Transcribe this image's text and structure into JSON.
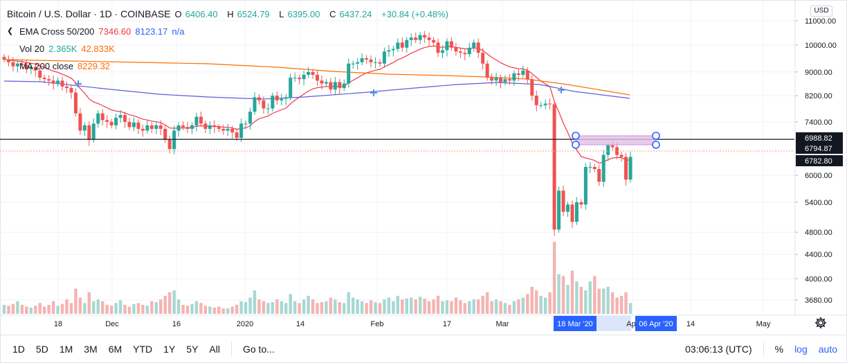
{
  "header": {
    "title": "Bitcoin / U.S. Dollar · 1D · COINBASE",
    "ohlc": [
      {
        "label": "O",
        "value": "6406.40"
      },
      {
        "label": "H",
        "value": "6524.79"
      },
      {
        "label": "L",
        "value": "6395.00"
      },
      {
        "label": "C",
        "value": "6437.24"
      }
    ],
    "change": "+30.84 (+0.48%)"
  },
  "indicators": [
    {
      "name": "EMA Cross 50/200",
      "values": [
        "7346.60",
        "8123.17",
        "n/a"
      ],
      "colors": [
        "#f23645",
        "#2962ff",
        "#2962ff"
      ]
    },
    {
      "name": "Vol 20",
      "values": [
        "2.365K",
        "42.833K"
      ],
      "colors": [
        "#26a69a",
        "#ff6d00"
      ]
    },
    {
      "name": "MA 200 close",
      "values": [
        "8229.32"
      ],
      "colors": [
        "#ff6d00"
      ]
    }
  ],
  "currency_button": "USD",
  "price_scale": {
    "ticks": [
      "11000.00",
      "10000.00",
      "9000.00",
      "8200.00",
      "7400.00",
      "6000.00",
      "5400.00",
      "4800.00",
      "4400.00",
      "4000.00",
      "3680.00"
    ],
    "labels": [
      {
        "text": "6988.82",
        "bg": "#131722",
        "fg": "#ffffff"
      },
      {
        "text": "6794.87",
        "bg": "#131722",
        "fg": "#ffffff"
      },
      {
        "text": "6782.80",
        "bg": "#131722",
        "fg": "#ffffff"
      }
    ]
  },
  "time_scale": {
    "ticks": [
      "18",
      "Dec",
      "16",
      "2020",
      "14",
      "Feb",
      "17",
      "Mar",
      "14",
      "May"
    ],
    "range_labels": [
      "18 Mar '20",
      "06 Apr '20"
    ],
    "partial_label": "Ap"
  },
  "toolbar": {
    "ranges": [
      "1D",
      "5D",
      "1M",
      "3M",
      "6M",
      "YTD",
      "1Y",
      "5Y",
      "All"
    ],
    "goto": "Go to...",
    "clock": "03:06:13 (UTC)",
    "percent": "%",
    "log": "log",
    "auto": "auto"
  },
  "colors": {
    "up": "#26a69a",
    "down": "#ef5350",
    "ema_fast": "#f23645",
    "ema_slow": "#5b5fd6",
    "ma200": "#ff6d00",
    "range_box": "#e1bee7",
    "range_handle": "#2962ff"
  },
  "chart_data": {
    "type": "candlestick",
    "x_start": "2019-10-28",
    "x_end": "2020-03-27",
    "y_scale": "log",
    "ylim": [
      3450,
      11900
    ],
    "horizontal_line": 6910,
    "price_range_box": {
      "from": "2020-03-18",
      "to": "2020-04-06",
      "low": 6794.87,
      "high": 6988.82
    },
    "last_price": 6782.8,
    "close": [
      9450,
      9350,
      9200,
      9300,
      9250,
      9100,
      9180,
      9050,
      8800,
      8750,
      8700,
      8600,
      8700,
      8500,
      8450,
      8300,
      7650,
      7150,
      7300,
      6900,
      7350,
      7650,
      7450,
      7400,
      7300,
      7520,
      7600,
      7400,
      7250,
      7380,
      7200,
      7150,
      7300,
      7200,
      7300,
      7200,
      6900,
      6650,
      7150,
      7300,
      7250,
      7200,
      7300,
      7550,
      7350,
      7200,
      7300,
      7250,
      7200,
      7150,
      7200,
      7100,
      6950,
      7350,
      7350,
      7700,
      8150,
      8050,
      7800,
      7800,
      8200,
      8050,
      8100,
      8150,
      8800,
      8800,
      8750,
      8900,
      9000,
      8900,
      8700,
      8600,
      8650,
      8400,
      8650,
      8450,
      8600,
      9300,
      9300,
      9350,
      9500,
      9450,
      9350,
      9350,
      9300,
      9750,
      9800,
      9850,
      10100,
      9900,
      10200,
      10300,
      10200,
      10400,
      10300,
      10200,
      10100,
      9700,
      9800,
      10150,
      9900,
      9750,
      9700,
      9650,
      9900,
      10100,
      9700,
      9300,
      8800,
      8700,
      8800,
      8650,
      8750,
      8700,
      8950,
      8900,
      9050,
      8750,
      8200,
      7900,
      7900,
      7950,
      7930,
      4850,
      5650,
      5200,
      5350,
      5000,
      5400,
      5350,
      6200,
      6200,
      6150,
      5850,
      6500,
      6750,
      6700,
      6500,
      6450,
      5900,
      6450
    ],
    "volume": [
      0.5,
      0.45,
      0.55,
      0.7,
      0.5,
      0.4,
      0.35,
      0.45,
      0.6,
      0.4,
      0.5,
      0.7,
      0.45,
      0.55,
      0.8,
      0.6,
      1.4,
      0.9,
      0.6,
      1.2,
      0.7,
      0.8,
      0.7,
      0.5,
      0.45,
      0.6,
      0.75,
      0.5,
      0.4,
      0.55,
      0.6,
      0.5,
      0.45,
      0.7,
      0.65,
      0.8,
      1.0,
      1.2,
      1.3,
      0.8,
      0.5,
      0.45,
      0.55,
      0.7,
      0.6,
      0.45,
      0.4,
      0.35,
      0.4,
      0.3,
      0.3,
      0.4,
      0.5,
      0.7,
      0.65,
      0.9,
      1.3,
      0.8,
      0.7,
      0.6,
      0.65,
      0.8,
      0.7,
      0.6,
      1.1,
      0.7,
      0.6,
      0.8,
      1.0,
      0.8,
      0.6,
      0.65,
      0.7,
      0.9,
      0.8,
      0.65,
      0.6,
      1.2,
      0.9,
      0.8,
      0.7,
      0.6,
      0.75,
      0.65,
      0.6,
      0.8,
      0.9,
      0.7,
      1.0,
      0.8,
      0.85,
      0.9,
      0.8,
      0.95,
      0.85,
      0.7,
      0.8,
      1.0,
      0.7,
      0.75,
      0.7,
      0.9,
      0.75,
      0.6,
      0.7,
      0.8,
      0.8,
      1.0,
      1.2,
      0.7,
      0.8,
      0.7,
      0.6,
      0.5,
      0.7,
      0.8,
      0.9,
      1.1,
      1.5,
      1.3,
      1.0,
      0.9,
      1.2,
      4.0,
      2.2,
      2.1,
      1.6,
      2.4,
      1.8,
      1.5,
      1.3,
      1.8,
      2.1,
      1.4,
      1.4,
      1.5,
      1.2,
      0.9,
      1.0,
      1.2,
      0.6
    ]
  }
}
